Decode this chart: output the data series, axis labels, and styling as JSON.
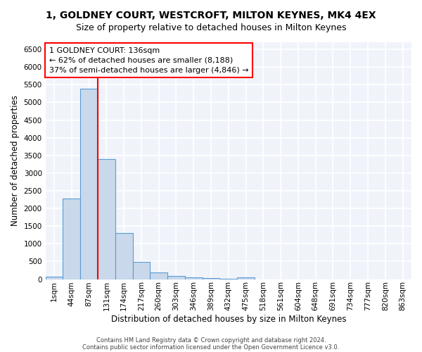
{
  "title": "1, GOLDNEY COURT, WESTCROFT, MILTON KEYNES, MK4 4EX",
  "subtitle": "Size of property relative to detached houses in Milton Keynes",
  "xlabel": "Distribution of detached houses by size in Milton Keynes",
  "ylabel": "Number of detached properties",
  "categories": [
    "1sqm",
    "44sqm",
    "87sqm",
    "131sqm",
    "174sqm",
    "217sqm",
    "260sqm",
    "303sqm",
    "346sqm",
    "389sqm",
    "432sqm",
    "475sqm",
    "518sqm",
    "561sqm",
    "604sqm",
    "648sqm",
    "691sqm",
    "734sqm",
    "777sqm",
    "820sqm",
    "863sqm"
  ],
  "values": [
    70,
    2280,
    5380,
    3400,
    1300,
    480,
    190,
    90,
    55,
    30,
    20,
    60,
    0,
    0,
    0,
    0,
    0,
    0,
    0,
    0,
    0
  ],
  "bar_color": "#c9d9eb",
  "bar_edge_color": "#5b9bd5",
  "vline_color": "red",
  "vline_x": 2.5,
  "annotation_text": "1 GOLDNEY COURT: 136sqm\n← 62% of detached houses are smaller (8,188)\n37% of semi-detached houses are larger (4,846) →",
  "annotation_box_color": "white",
  "annotation_box_edge_color": "red",
  "ylim": [
    0,
    6700
  ],
  "yticks": [
    0,
    500,
    1000,
    1500,
    2000,
    2500,
    3000,
    3500,
    4000,
    4500,
    5000,
    5500,
    6000,
    6500
  ],
  "footer_line1": "Contains HM Land Registry data © Crown copyright and database right 2024.",
  "footer_line2": "Contains public sector information licensed under the Open Government Licence v3.0.",
  "background_color": "#ffffff",
  "plot_bg_color": "#f0f4fa",
  "grid_color": "#ffffff",
  "title_fontsize": 10,
  "subtitle_fontsize": 9,
  "tick_fontsize": 7.5,
  "label_fontsize": 8.5
}
